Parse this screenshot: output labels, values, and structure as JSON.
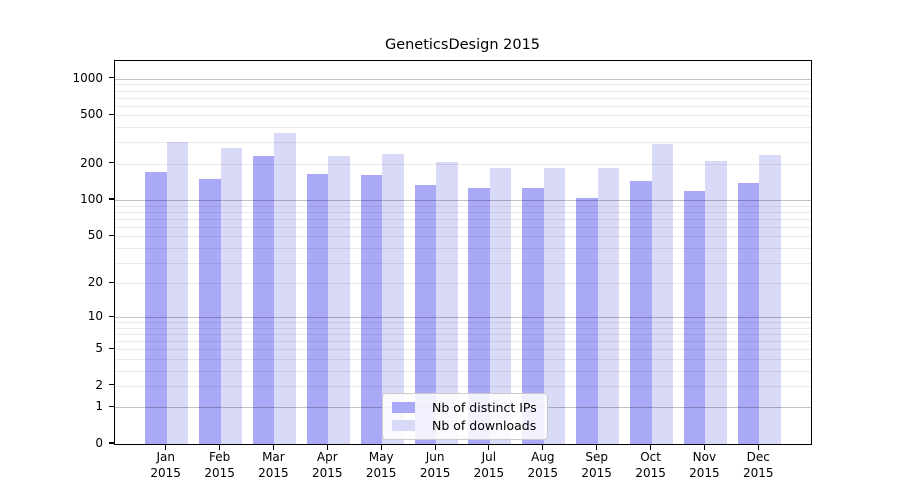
{
  "title": "GeneticsDesign 2015",
  "chart_data": {
    "type": "bar",
    "title": "GeneticsDesign 2015",
    "categories": [
      "Jan",
      "Feb",
      "Mar",
      "Apr",
      "May",
      "Jun",
      "Jul",
      "Aug",
      "Sep",
      "Oct",
      "Nov",
      "Dec"
    ],
    "year_label": "2015",
    "series": [
      {
        "name": "Nb of distinct IPs",
        "color": "#a9a9f8",
        "values": [
          170,
          150,
          230,
          165,
          160,
          133,
          126,
          126,
          105,
          143,
          120,
          138
        ]
      },
      {
        "name": "Nb of downloads",
        "color": "#d9d9f8",
        "values": [
          300,
          270,
          360,
          230,
          240,
          205,
          183,
          184,
          186,
          290,
          210,
          237
        ]
      }
    ],
    "y_scale": "log1p",
    "y_ticks": [
      0,
      1,
      2,
      5,
      10,
      20,
      50,
      100,
      200,
      500,
      1000
    ],
    "ylim": [
      0,
      1400
    ],
    "grid": "on",
    "legend_position": "lower center inside plot",
    "colors": {
      "axis": "#000000",
      "major_grid": "rgba(0,0,0,0.24)",
      "minor_grid": "rgba(0,0,0,0.08)",
      "background": "#ffffff"
    }
  }
}
